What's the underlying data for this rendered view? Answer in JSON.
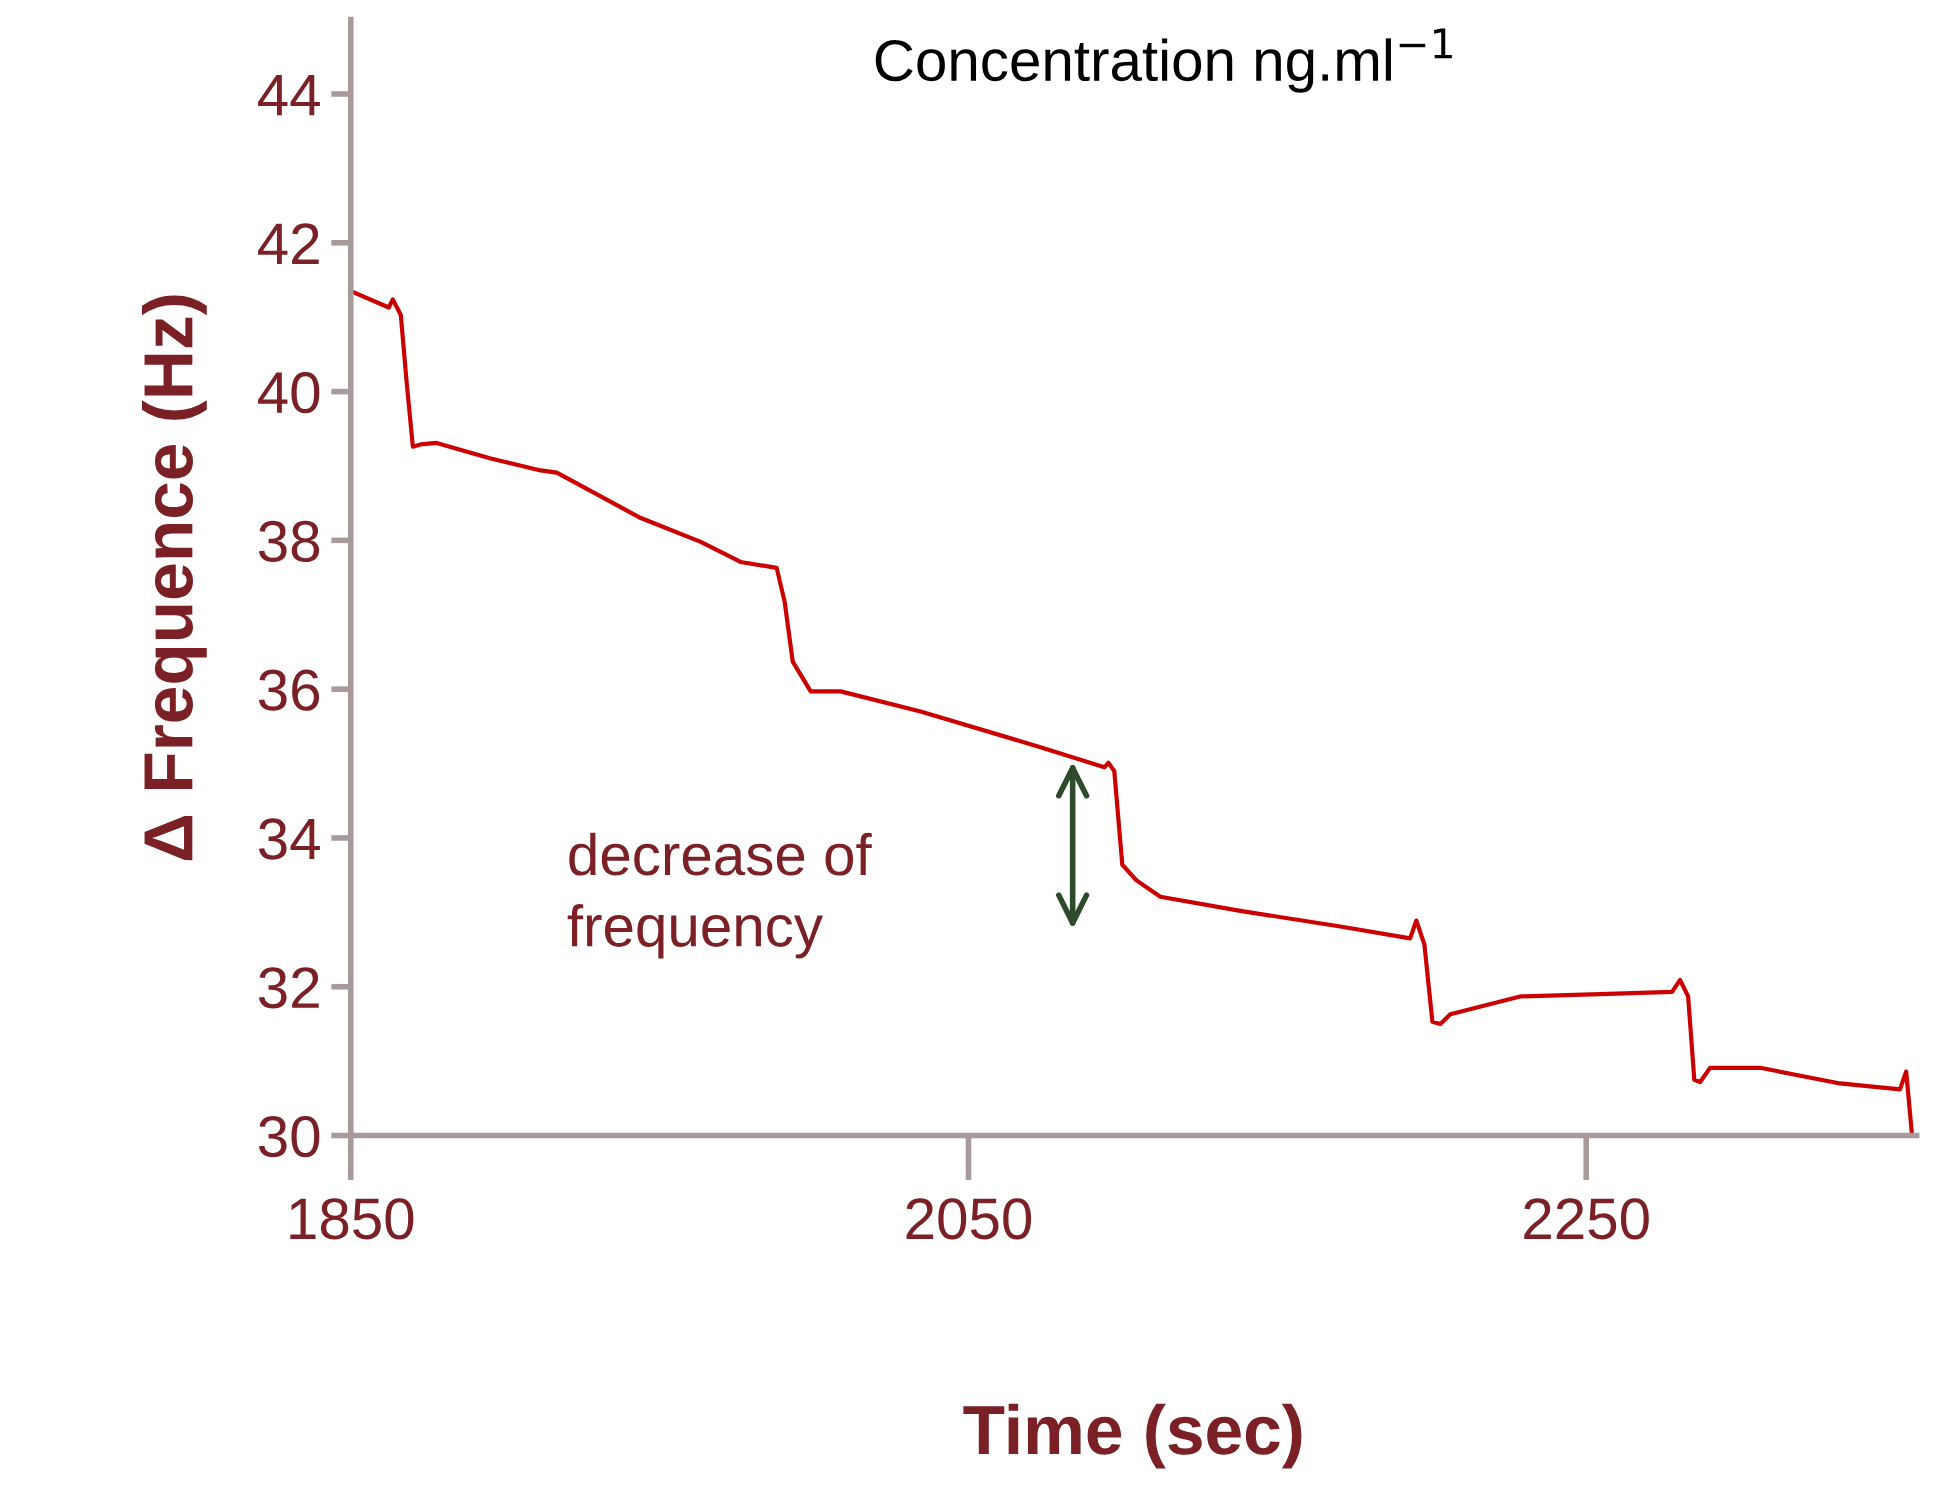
{
  "chart_data": {
    "type": "line",
    "title": "Concentration ng.ml$^{−1}$",
    "xlabel": "Time (sec)",
    "ylabel": "Δ Frequence (Hz)",
    "x": [
      1850,
      1862.3,
      1863.6,
      1866.2,
      1868.1,
      1870.1,
      1872.6,
      1877.8,
      1895.3,
      1911.5,
      1916.7,
      1943.9,
      1963.3,
      1976.2,
      1987.9,
      1990.5,
      1993.1,
      1998.9,
      2008.6,
      2034.5,
      2073.3,
      2094.0,
      2095.3,
      2097.2,
      2099.8,
      2104.4,
      2112.1,
      2138.0,
      2170.4,
      2193.0,
      2195.0,
      2197.6,
      2200.2,
      2202.8,
      2206.0,
      2228.6,
      2254.5,
      2277.8,
      2280.4,
      2283.0,
      2285.0,
      2286.9,
      2290.1,
      2306.3,
      2332.2,
      2351.6,
      2353.6,
      2355.5
    ],
    "series": [
      {
        "color": "#cc0000",
        "values": [
          41.35,
          41.13,
          41.24,
          41.03,
          40.12,
          39.26,
          39.29,
          39.31,
          39.1,
          38.94,
          38.91,
          38.3,
          37.98,
          37.71,
          37.63,
          37.17,
          36.37,
          35.97,
          35.97,
          35.7,
          35.22,
          34.95,
          35.01,
          34.9,
          33.64,
          33.43,
          33.21,
          33.02,
          32.81,
          32.65,
          32.89,
          32.57,
          31.53,
          31.5,
          31.63,
          31.87,
          31.9,
          31.93,
          32.09,
          31.87,
          30.75,
          30.72,
          30.91,
          30.91,
          30.7,
          30.62,
          30.86,
          30.0
        ]
      }
    ],
    "xlim": [
      1850,
      2357
    ],
    "ylim": [
      30,
      45
    ],
    "xticks": [
      1850,
      2050,
      2250
    ],
    "yticks": [
      30,
      32,
      34,
      36,
      38,
      40,
      42,
      44
    ],
    "annotations": [
      "decrease of\nfrequency"
    ],
    "grid": false,
    "legend": false,
    "marker": "none",
    "line_style": "solid"
  }
}
